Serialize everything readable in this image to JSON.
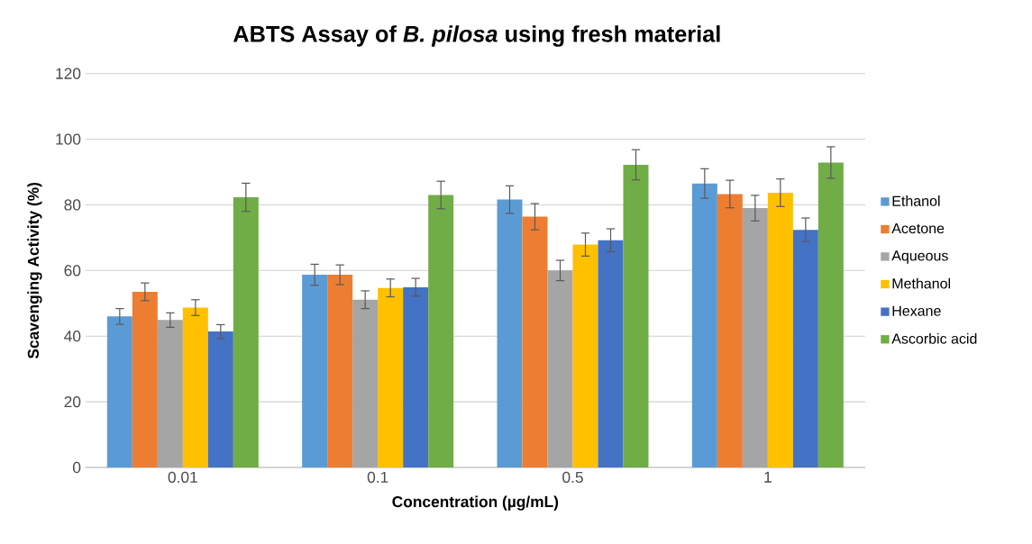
{
  "chart_data": {
    "type": "bar",
    "title": "ABTS Assay of *B. pilosa* using fresh material",
    "xlabel": "Concentration (µg/mL)",
    "ylabel": "Scavenging Activity (%)",
    "categories": [
      "0.01",
      "0.1",
      "0.5",
      "1"
    ],
    "series": [
      {
        "name": "Ethanol",
        "color": "#5b9bd5",
        "values": [
          46.0,
          58.7,
          81.6,
          86.5
        ],
        "errors": [
          2.4,
          3.2,
          4.2,
          4.5
        ]
      },
      {
        "name": "Acetone",
        "color": "#ed7d31",
        "values": [
          53.5,
          58.7,
          76.4,
          83.3
        ],
        "errors": [
          2.7,
          3.0,
          4.0,
          4.2
        ]
      },
      {
        "name": "Aqueous",
        "color": "#a5a5a5",
        "values": [
          44.9,
          51.1,
          60.0,
          79.0
        ],
        "errors": [
          2.2,
          2.7,
          3.1,
          3.9
        ]
      },
      {
        "name": "Methanol",
        "color": "#ffc000",
        "values": [
          48.7,
          54.7,
          67.9,
          83.7
        ],
        "errors": [
          2.4,
          2.7,
          3.5,
          4.2
        ]
      },
      {
        "name": "Hexane",
        "color": "#4472c4",
        "values": [
          41.4,
          54.9,
          69.2,
          72.4
        ],
        "errors": [
          2.1,
          2.7,
          3.5,
          3.6
        ]
      },
      {
        "name": "Ascorbic acid",
        "color": "#70ad47",
        "values": [
          82.3,
          83.0,
          92.2,
          92.9
        ],
        "errors": [
          4.3,
          4.2,
          4.6,
          4.8
        ]
      }
    ],
    "ylim": [
      0,
      120
    ],
    "yticks": [
      0,
      20,
      40,
      60,
      80,
      100,
      120
    ],
    "grid": "y",
    "legend": "right"
  }
}
